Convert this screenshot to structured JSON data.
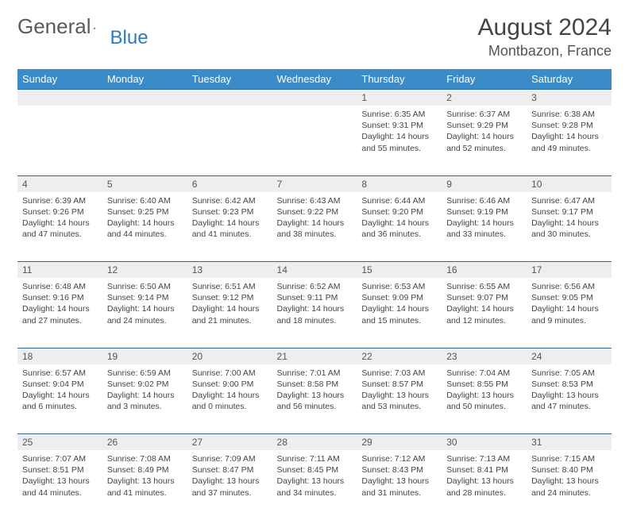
{
  "brand": {
    "part1": "General",
    "part2": "Blue"
  },
  "title": "August 2024",
  "location": "Montbazon, France",
  "colors": {
    "header_bg": "#3b8bc9",
    "header_text": "#ffffff",
    "daynum_bg": "#eceef0",
    "border": "#2b6aa0",
    "text": "#444444",
    "logo_gray": "#5a5a5a",
    "logo_blue": "#2c7bbf"
  },
  "weekdays": [
    "Sunday",
    "Monday",
    "Tuesday",
    "Wednesday",
    "Thursday",
    "Friday",
    "Saturday"
  ],
  "weeks": [
    [
      null,
      null,
      null,
      null,
      {
        "n": "1",
        "sr": "6:35 AM",
        "ss": "9:31 PM",
        "dl": "14 hours and 55 minutes."
      },
      {
        "n": "2",
        "sr": "6:37 AM",
        "ss": "9:29 PM",
        "dl": "14 hours and 52 minutes."
      },
      {
        "n": "3",
        "sr": "6:38 AM",
        "ss": "9:28 PM",
        "dl": "14 hours and 49 minutes."
      }
    ],
    [
      {
        "n": "4",
        "sr": "6:39 AM",
        "ss": "9:26 PM",
        "dl": "14 hours and 47 minutes."
      },
      {
        "n": "5",
        "sr": "6:40 AM",
        "ss": "9:25 PM",
        "dl": "14 hours and 44 minutes."
      },
      {
        "n": "6",
        "sr": "6:42 AM",
        "ss": "9:23 PM",
        "dl": "14 hours and 41 minutes."
      },
      {
        "n": "7",
        "sr": "6:43 AM",
        "ss": "9:22 PM",
        "dl": "14 hours and 38 minutes."
      },
      {
        "n": "8",
        "sr": "6:44 AM",
        "ss": "9:20 PM",
        "dl": "14 hours and 36 minutes."
      },
      {
        "n": "9",
        "sr": "6:46 AM",
        "ss": "9:19 PM",
        "dl": "14 hours and 33 minutes."
      },
      {
        "n": "10",
        "sr": "6:47 AM",
        "ss": "9:17 PM",
        "dl": "14 hours and 30 minutes."
      }
    ],
    [
      {
        "n": "11",
        "sr": "6:48 AM",
        "ss": "9:16 PM",
        "dl": "14 hours and 27 minutes."
      },
      {
        "n": "12",
        "sr": "6:50 AM",
        "ss": "9:14 PM",
        "dl": "14 hours and 24 minutes."
      },
      {
        "n": "13",
        "sr": "6:51 AM",
        "ss": "9:12 PM",
        "dl": "14 hours and 21 minutes."
      },
      {
        "n": "14",
        "sr": "6:52 AM",
        "ss": "9:11 PM",
        "dl": "14 hours and 18 minutes."
      },
      {
        "n": "15",
        "sr": "6:53 AM",
        "ss": "9:09 PM",
        "dl": "14 hours and 15 minutes."
      },
      {
        "n": "16",
        "sr": "6:55 AM",
        "ss": "9:07 PM",
        "dl": "14 hours and 12 minutes."
      },
      {
        "n": "17",
        "sr": "6:56 AM",
        "ss": "9:05 PM",
        "dl": "14 hours and 9 minutes."
      }
    ],
    [
      {
        "n": "18",
        "sr": "6:57 AM",
        "ss": "9:04 PM",
        "dl": "14 hours and 6 minutes."
      },
      {
        "n": "19",
        "sr": "6:59 AM",
        "ss": "9:02 PM",
        "dl": "14 hours and 3 minutes."
      },
      {
        "n": "20",
        "sr": "7:00 AM",
        "ss": "9:00 PM",
        "dl": "14 hours and 0 minutes."
      },
      {
        "n": "21",
        "sr": "7:01 AM",
        "ss": "8:58 PM",
        "dl": "13 hours and 56 minutes."
      },
      {
        "n": "22",
        "sr": "7:03 AM",
        "ss": "8:57 PM",
        "dl": "13 hours and 53 minutes."
      },
      {
        "n": "23",
        "sr": "7:04 AM",
        "ss": "8:55 PM",
        "dl": "13 hours and 50 minutes."
      },
      {
        "n": "24",
        "sr": "7:05 AM",
        "ss": "8:53 PM",
        "dl": "13 hours and 47 minutes."
      }
    ],
    [
      {
        "n": "25",
        "sr": "7:07 AM",
        "ss": "8:51 PM",
        "dl": "13 hours and 44 minutes."
      },
      {
        "n": "26",
        "sr": "7:08 AM",
        "ss": "8:49 PM",
        "dl": "13 hours and 41 minutes."
      },
      {
        "n": "27",
        "sr": "7:09 AM",
        "ss": "8:47 PM",
        "dl": "13 hours and 37 minutes."
      },
      {
        "n": "28",
        "sr": "7:11 AM",
        "ss": "8:45 PM",
        "dl": "13 hours and 34 minutes."
      },
      {
        "n": "29",
        "sr": "7:12 AM",
        "ss": "8:43 PM",
        "dl": "13 hours and 31 minutes."
      },
      {
        "n": "30",
        "sr": "7:13 AM",
        "ss": "8:41 PM",
        "dl": "13 hours and 28 minutes."
      },
      {
        "n": "31",
        "sr": "7:15 AM",
        "ss": "8:40 PM",
        "dl": "13 hours and 24 minutes."
      }
    ]
  ],
  "labels": {
    "sunrise": "Sunrise:",
    "sunset": "Sunset:",
    "daylight": "Daylight:"
  }
}
